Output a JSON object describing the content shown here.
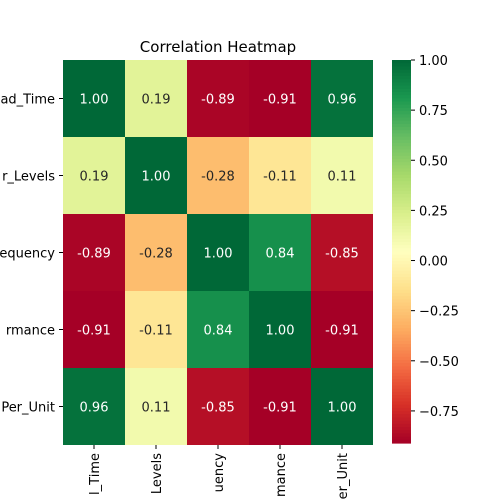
{
  "chart_data": {
    "type": "heatmap",
    "title": "Correlation Heatmap",
    "row_labels": [
      "ad_Time",
      "r_Levels",
      "equency",
      "rmance",
      "Per_Unit"
    ],
    "col_labels": [
      "l_Time",
      "Levels",
      "uency",
      "mance",
      "er_Unit"
    ],
    "values": [
      [
        1.0,
        0.19,
        -0.89,
        -0.91,
        0.96
      ],
      [
        0.19,
        1.0,
        -0.28,
        -0.11,
        0.11
      ],
      [
        -0.89,
        -0.28,
        1.0,
        0.84,
        -0.85
      ],
      [
        -0.91,
        -0.11,
        0.84,
        1.0,
        -0.91
      ],
      [
        0.96,
        0.11,
        -0.85,
        -0.91,
        1.0
      ]
    ],
    "cell_labels": [
      [
        "1.00",
        "0.19",
        "-0.89",
        "-0.91",
        "0.96"
      ],
      [
        "0.19",
        "1.00",
        "-0.28",
        "-0.11",
        "0.11"
      ],
      [
        "-0.89",
        "-0.28",
        "1.00",
        "0.84",
        "-0.85"
      ],
      [
        "-0.91",
        "-0.11",
        "0.84",
        "1.00",
        "-0.91"
      ],
      [
        "0.96",
        "0.11",
        "-0.85",
        "-0.91",
        "1.00"
      ]
    ],
    "colormap": "RdYlGn",
    "vmin": -0.91,
    "vmax": 1.0,
    "colorbar_ticks": [
      "1.00",
      "0.75",
      "0.50",
      "0.25",
      "0.00",
      "−0.25",
      "−0.50",
      "−0.75"
    ],
    "colorbar_tick_values": [
      1.0,
      0.75,
      0.5,
      0.25,
      0.0,
      -0.25,
      -0.5,
      -0.75
    ],
    "grid": false,
    "legend": "colorbar-right"
  }
}
